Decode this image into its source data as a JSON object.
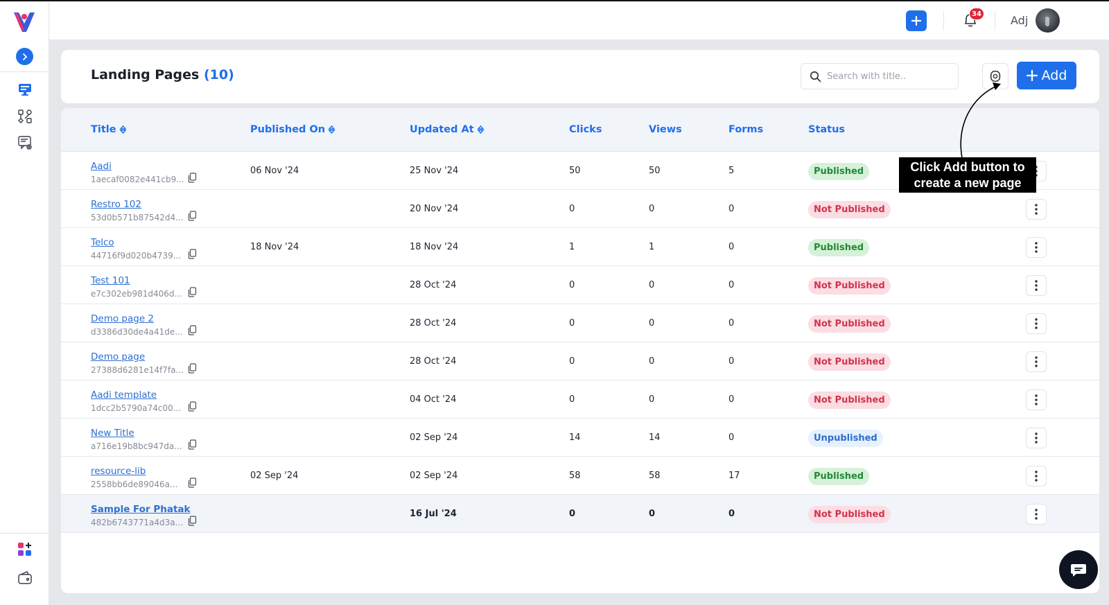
{
  "header": {
    "title": "Landing Pages",
    "count": "(10)",
    "search_placeholder": "Search with title..",
    "add_label": "Add"
  },
  "topbar": {
    "notification_count": "34",
    "user_name": "Adj"
  },
  "table": {
    "columns": {
      "title": "Title",
      "published_on": "Published On",
      "updated_at": "Updated At",
      "clicks": "Clicks",
      "views": "Views",
      "forms": "Forms",
      "status": "Status"
    },
    "rows": [
      {
        "title": "Aadi",
        "id": "1aecaf0082e441cb9...",
        "published_on": "06 Nov '24",
        "updated_at": "25 Nov '24",
        "clicks": "50",
        "views": "50",
        "forms": "5",
        "status": "Published",
        "status_type": "pub"
      },
      {
        "title": "Restro 102",
        "id": "53d0b571b87542d4...",
        "published_on": "",
        "updated_at": "20 Nov '24",
        "clicks": "0",
        "views": "0",
        "forms": "0",
        "status": "Not Published",
        "status_type": "notpub"
      },
      {
        "title": "Telco",
        "id": "44716f9d020b4739...",
        "published_on": "18 Nov '24",
        "updated_at": "18 Nov '24",
        "clicks": "1",
        "views": "1",
        "forms": "0",
        "status": "Published",
        "status_type": "pub"
      },
      {
        "title": "Test 101",
        "id": "e7c302eb981d406d...",
        "published_on": "",
        "updated_at": "28 Oct '24",
        "clicks": "0",
        "views": "0",
        "forms": "0",
        "status": "Not Published",
        "status_type": "notpub"
      },
      {
        "title": "Demo page 2",
        "id": "d3386d30de4a41de...",
        "published_on": "",
        "updated_at": "28 Oct '24",
        "clicks": "0",
        "views": "0",
        "forms": "0",
        "status": "Not Published",
        "status_type": "notpub"
      },
      {
        "title": "Demo page",
        "id": "27388d6281e14f7fa...",
        "published_on": "",
        "updated_at": "28 Oct '24",
        "clicks": "0",
        "views": "0",
        "forms": "0",
        "status": "Not Published",
        "status_type": "notpub"
      },
      {
        "title": "Aadi template",
        "id": "1dcc2b5790a74c00...",
        "published_on": "",
        "updated_at": "04 Oct '24",
        "clicks": "0",
        "views": "0",
        "forms": "0",
        "status": "Not Published",
        "status_type": "notpub"
      },
      {
        "title": "New Title",
        "id": "a716e19b8bc947da...",
        "published_on": "",
        "updated_at": "02 Sep '24",
        "clicks": "14",
        "views": "14",
        "forms": "0",
        "status": "Unpublished",
        "status_type": "unpub"
      },
      {
        "title": "resource-lib",
        "id": "2558bb6de89046a...",
        "published_on": "02 Sep '24",
        "updated_at": "02 Sep '24",
        "clicks": "58",
        "views": "58",
        "forms": "17",
        "status": "Published",
        "status_type": "pub"
      },
      {
        "title": "Sample For Phatak",
        "id": "482b6743771a4d3a...",
        "published_on": "",
        "updated_at": "16 Jul '24",
        "clicks": "0",
        "views": "0",
        "forms": "0",
        "status": "Not Published",
        "status_type": "notpub"
      }
    ]
  },
  "annotation": {
    "line1": "Click Add button to",
    "line2": "create a new page"
  },
  "colors": {
    "accent": "#1f6feb",
    "published": "#218a35",
    "not_published": "#d0344e",
    "unpublished": "#2c6fd1"
  },
  "icons": [
    "app-logo-icon",
    "chevron-right-icon",
    "monitor-icon",
    "workflow-icon",
    "chat-settings-icon",
    "apps-add-icon",
    "wallet-icon",
    "plus-icon",
    "bell-icon",
    "search-icon",
    "gear-icon",
    "copy-icon",
    "kebab-icon",
    "sort-icon",
    "chat-bubble-icon"
  ]
}
